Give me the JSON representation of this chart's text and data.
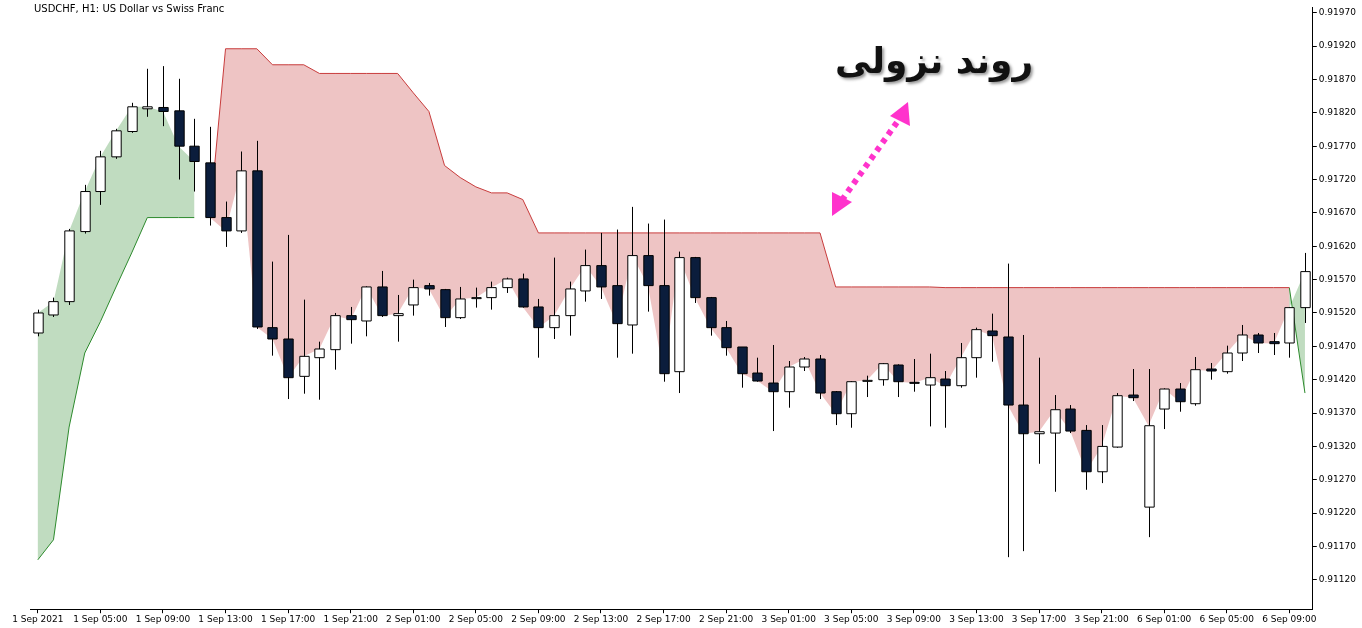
{
  "chart_data": {
    "type": "candlestick",
    "title": "USDCHF, H1: US Dollar vs Swiss Franc",
    "annotations": [
      "روند نزولی"
    ],
    "categories": [
      "1 Sep 2021",
      null,
      null,
      null,
      "1 Sep 05:00",
      null,
      null,
      null,
      "1 Sep 09:00",
      null,
      null,
      null,
      "1 Sep 13:00",
      null,
      null,
      null,
      "1 Sep 17:00",
      null,
      null,
      null,
      "1 Sep 21:00",
      null,
      null,
      null,
      "2 Sep 01:00",
      null,
      null,
      null,
      "2 Sep 05:00",
      null,
      null,
      null,
      "2 Sep 09:00",
      null,
      null,
      null,
      "2 Sep 13:00",
      null,
      null,
      null,
      "2 Sep 17:00",
      null,
      null,
      null,
      "2 Sep 21:00",
      null,
      null,
      null,
      "3 Sep 01:00",
      null,
      null,
      null,
      "3 Sep 05:00",
      null,
      null,
      null,
      "3 Sep 09:00",
      null,
      null,
      null,
      "3 Sep 13:00",
      null,
      null,
      null,
      "3 Sep 17:00",
      null,
      null,
      null,
      "3 Sep 21:00",
      null,
      null,
      null,
      "6 Sep 01:00",
      null,
      null,
      null,
      "6 Sep 05:00",
      null,
      null,
      null,
      "6 Sep 09:00",
      null
    ],
    "ohlc": [
      [
        0.9149,
        0.91525,
        0.91485,
        0.9152
      ],
      [
        0.91517,
        0.91543,
        0.91514,
        0.91537
      ],
      [
        0.91537,
        0.91646,
        0.91532,
        0.91643
      ],
      [
        0.91642,
        0.91712,
        0.91639,
        0.91702
      ],
      [
        0.91702,
        0.91763,
        0.91682,
        0.91754
      ],
      [
        0.91754,
        0.91796,
        0.91751,
        0.91793
      ],
      [
        0.91792,
        0.91835,
        0.9179,
        0.91829
      ],
      [
        0.91826,
        0.91886,
        0.91814,
        0.91829
      ],
      [
        0.91828,
        0.9189,
        0.918,
        0.91822
      ],
      [
        0.91823,
        0.91871,
        0.9172,
        0.9177
      ],
      [
        0.9177,
        0.91811,
        0.91702,
        0.91747
      ],
      [
        0.91745,
        0.91799,
        0.91651,
        0.91663
      ],
      [
        0.91663,
        0.91687,
        0.91619,
        0.91643
      ],
      [
        0.91643,
        0.91762,
        0.9164,
        0.91733
      ],
      [
        0.91733,
        0.91778,
        0.91496,
        0.91499
      ],
      [
        0.91498,
        0.91597,
        0.91456,
        0.91481
      ],
      [
        0.91481,
        0.91637,
        0.91391,
        0.91423
      ],
      [
        0.91425,
        0.9154,
        0.91399,
        0.91455
      ],
      [
        0.91453,
        0.91477,
        0.9139,
        0.91466
      ],
      [
        0.91465,
        0.9152,
        0.91435,
        0.91516
      ],
      [
        0.91516,
        0.91529,
        0.91474,
        0.9151
      ],
      [
        0.91508,
        0.9156,
        0.91485,
        0.91559
      ],
      [
        0.91559,
        0.91583,
        0.91514,
        0.91516
      ],
      [
        0.91516,
        0.91547,
        0.91477,
        0.91519
      ],
      [
        0.91532,
        0.9157,
        0.91516,
        0.91558
      ],
      [
        0.91561,
        0.91565,
        0.91546,
        0.91556
      ],
      [
        0.91555,
        0.91556,
        0.91499,
        0.91513
      ],
      [
        0.91513,
        0.91559,
        0.91511,
        0.91541
      ],
      [
        0.91542,
        0.91558,
        0.91528,
        0.91543
      ],
      [
        0.91543,
        0.91567,
        0.91525,
        0.91558
      ],
      [
        0.91558,
        0.91573,
        0.9155,
        0.91571
      ],
      [
        0.91571,
        0.91579,
        0.91528,
        0.91529
      ],
      [
        0.91529,
        0.91541,
        0.91453,
        0.91498
      ],
      [
        0.91498,
        0.91603,
        0.91481,
        0.91516
      ],
      [
        0.91516,
        0.91567,
        0.91486,
        0.91556
      ],
      [
        0.91553,
        0.91615,
        0.91537,
        0.91591
      ],
      [
        0.91591,
        0.9164,
        0.91541,
        0.91559
      ],
      [
        0.91561,
        0.91645,
        0.91453,
        0.91504
      ],
      [
        0.91502,
        0.91679,
        0.91459,
        0.91606
      ],
      [
        0.91606,
        0.91654,
        0.91522,
        0.91561
      ],
      [
        0.91561,
        0.9166,
        0.91417,
        0.91429
      ],
      [
        0.91432,
        0.91612,
        0.914,
        0.91603
      ],
      [
        0.91603,
        0.91604,
        0.91535,
        0.91543
      ],
      [
        0.91543,
        0.91544,
        0.91486,
        0.91498
      ],
      [
        0.91498,
        0.91508,
        0.91456,
        0.91468
      ],
      [
        0.91469,
        0.91469,
        0.91408,
        0.91429
      ],
      [
        0.9143,
        0.91453,
        0.91417,
        0.91418
      ],
      [
        0.91415,
        0.91472,
        0.91343,
        0.91402
      ],
      [
        0.91402,
        0.91448,
        0.91378,
        0.91439
      ],
      [
        0.91439,
        0.91454,
        0.91433,
        0.91451
      ],
      [
        0.91451,
        0.91457,
        0.91391,
        0.914
      ],
      [
        0.91402,
        0.91403,
        0.91352,
        0.91369
      ],
      [
        0.91369,
        0.91418,
        0.91348,
        0.91417
      ],
      [
        0.91418,
        0.91426,
        0.91394,
        0.91419
      ],
      [
        0.9142,
        0.91445,
        0.91411,
        0.91444
      ],
      [
        0.91442,
        0.91443,
        0.91394,
        0.91417
      ],
      [
        0.91416,
        0.91451,
        0.91402,
        0.91415
      ],
      [
        0.91412,
        0.91459,
        0.9135,
        0.91423
      ],
      [
        0.91421,
        0.91433,
        0.91348,
        0.91411
      ],
      [
        0.91411,
        0.91475,
        0.91408,
        0.91453
      ],
      [
        0.91453,
        0.91498,
        0.91423,
        0.91495
      ],
      [
        0.91493,
        0.91519,
        0.91447,
        0.91486
      ],
      [
        0.91484,
        0.91594,
        0.91154,
        0.91382
      ],
      [
        0.91382,
        0.91487,
        0.91163,
        0.91339
      ],
      [
        0.91339,
        0.91453,
        0.91294,
        0.91342
      ],
      [
        0.9134,
        0.91397,
        0.91252,
        0.91375
      ],
      [
        0.91376,
        0.91382,
        0.9134,
        0.91343
      ],
      [
        0.91344,
        0.91352,
        0.91255,
        0.91282
      ],
      [
        0.91282,
        0.91352,
        0.91265,
        0.9132
      ],
      [
        0.91319,
        0.914,
        0.91318,
        0.91396
      ],
      [
        0.91397,
        0.91436,
        0.91388,
        0.91393
      ],
      [
        0.91229,
        0.91436,
        0.91184,
        0.91351
      ],
      [
        0.91376,
        0.91407,
        0.91346,
        0.91406
      ],
      [
        0.91406,
        0.91415,
        0.91372,
        0.91387
      ],
      [
        0.91384,
        0.91454,
        0.91381,
        0.91435
      ],
      [
        0.91436,
        0.91445,
        0.9142,
        0.91433
      ],
      [
        0.91432,
        0.91471,
        0.91429,
        0.9146
      ],
      [
        0.9146,
        0.91502,
        0.91448,
        0.91487
      ],
      [
        0.91487,
        0.9149,
        0.9146,
        0.91475
      ],
      [
        0.91477,
        0.9149,
        0.91457,
        0.91474
      ],
      [
        0.91475,
        0.91529,
        0.91453,
        0.91528
      ],
      [
        0.91528,
        0.9161,
        0.91505,
        0.91582
      ]
    ],
    "colors": [
      "#ffffff",
      "#ffffff",
      "#ffffff",
      "#ffffff",
      "#ffffff",
      "#ffffff",
      "#ffffff",
      "#ffffff",
      "#0b1d3c",
      "#0b1d3c",
      "#0b1d3c",
      "#0b1d3c",
      "#0b1d3c",
      "#ffffff",
      "#0b1d3c",
      "#0b1d3c",
      "#0b1d3c",
      "#ffffff",
      "#ffffff",
      "#ffffff",
      "#0b1d3c",
      "#ffffff",
      "#0b1d3c",
      "#ffffff",
      "#ffffff",
      "#0b1d3c",
      "#0b1d3c",
      "#ffffff",
      "#ffffff",
      "#ffffff",
      "#ffffff",
      "#0b1d3c",
      "#0b1d3c",
      "#ffffff",
      "#ffffff",
      "#ffffff",
      "#0b1d3c",
      "#0b1d3c",
      "#ffffff",
      "#0b1d3c",
      "#0b1d3c",
      "#ffffff",
      "#0b1d3c",
      "#0b1d3c",
      "#0b1d3c",
      "#0b1d3c",
      "#0b1d3c",
      "#0b1d3c",
      "#ffffff",
      "#ffffff",
      "#0b1d3c",
      "#0b1d3c",
      "#ffffff",
      "#ffffff",
      "#ffffff",
      "#0b1d3c",
      "#0b1d3c",
      "#ffffff",
      "#0b1d3c",
      "#ffffff",
      "#ffffff",
      "#0b1d3c",
      "#0b1d3c",
      "#0b1d3c",
      "#ffffff",
      "#ffffff",
      "#0b1d3c",
      "#0b1d3c",
      "#ffffff",
      "#ffffff",
      "#0b1d3c",
      "#ffffff",
      "#ffffff",
      "#0b1d3c",
      "#ffffff",
      "#0b1d3c",
      "#ffffff",
      "#ffffff",
      "#0b1d3c",
      "#0b1d3c",
      "#ffffff",
      "#ffffff"
    ],
    "series": [
      {
        "type": "area",
        "color": "#c83c3c",
        "values": [
          null,
          null,
          null,
          null,
          null,
          null,
          null,
          null,
          null,
          null,
          null,
          0.91666,
          0.91916,
          0.91916,
          0.91916,
          0.91892,
          0.91892,
          0.91892,
          0.91879,
          0.91879,
          0.91879,
          0.91879,
          0.91879,
          0.91879,
          0.9185,
          0.91822,
          0.91741,
          0.91723,
          0.91709,
          0.917,
          0.917,
          0.9169,
          0.9164,
          0.9164,
          0.9164,
          0.9164,
          0.9164,
          0.9164,
          0.9164,
          0.9164,
          0.9164,
          0.9164,
          0.9164,
          0.9164,
          0.9164,
          0.9164,
          0.9164,
          0.9164,
          0.9164,
          0.9164,
          0.9164,
          0.91559,
          0.91559,
          0.91559,
          0.91559,
          0.91559,
          0.91559,
          0.91559,
          0.91558,
          0.91558,
          0.91558,
          0.91558,
          0.91558,
          0.91558,
          0.91558,
          0.91558,
          0.91558,
          0.91558,
          0.91558,
          0.91558,
          0.91558,
          0.91558,
          0.91558,
          0.91558,
          0.91558,
          0.91558,
          0.91558,
          0.91558,
          0.91558,
          0.91558,
          0.91558,
          null
        ]
      },
      {
        "type": "line",
        "color": "#2d8a2d",
        "values": [
          0.9115,
          0.9118,
          0.91349,
          0.9146,
          0.91507,
          0.91559,
          0.9161,
          0.91663,
          0.91663,
          0.91663,
          0.91663,
          null,
          null,
          null,
          null,
          null,
          null,
          null,
          null,
          null,
          null,
          null,
          null,
          null,
          null,
          null,
          null,
          null,
          null,
          null,
          null,
          null,
          null,
          null,
          null,
          null,
          null,
          null,
          null,
          null,
          null,
          null,
          null,
          null,
          null,
          null,
          null,
          null,
          null,
          null,
          null,
          null,
          null,
          null,
          null,
          null,
          null,
          null,
          null,
          null,
          null,
          null,
          null,
          null,
          null,
          null,
          null,
          null,
          null,
          null,
          null,
          null,
          null,
          null,
          null,
          null,
          null,
          null,
          null,
          null,
          0.91558,
          0.914
        ],
        "lower": [
          0.9115,
          0.9118,
          0.91349,
          0.9146,
          0.91507,
          0.91559,
          0.9161,
          0.91663,
          0.91663,
          0.91663,
          0.91663,
          null,
          null,
          null,
          null,
          null,
          null,
          null,
          null,
          null,
          null,
          null,
          null,
          null,
          null,
          null,
          null,
          null,
          null,
          null,
          null,
          null,
          null,
          null,
          null,
          null,
          null,
          null,
          null,
          null,
          null,
          null,
          null,
          null,
          null,
          null,
          null,
          null,
          null,
          null,
          null,
          null,
          null,
          null,
          null,
          null,
          null,
          null,
          null,
          null,
          null,
          null,
          null,
          null,
          null,
          null,
          null,
          null,
          null,
          null,
          null,
          null,
          null,
          null,
          null,
          null,
          null,
          null,
          null,
          null,
          0.91558,
          0.914
        ],
        "upper": [
          0.9152,
          0.91537,
          0.91643,
          0.91702,
          0.91754,
          0.91793,
          0.91829,
          0.91829,
          0.91822,
          0.9177,
          0.91747,
          null,
          null,
          null,
          null,
          null,
          null,
          null,
          null,
          null,
          null,
          null,
          null,
          null,
          null,
          null,
          null,
          null,
          null,
          null,
          null,
          null,
          null,
          null,
          null,
          null,
          null,
          null,
          null,
          null,
          null,
          null,
          null,
          null,
          null,
          null,
          null,
          null,
          null,
          null,
          null,
          null,
          null,
          null,
          null,
          null,
          null,
          null,
          null,
          null,
          null,
          null,
          null,
          null,
          null,
          null,
          null,
          null,
          null,
          null,
          null,
          null,
          null,
          null,
          null,
          null,
          null,
          null,
          null,
          null,
          0.91528,
          0.91582
        ]
      }
    ],
    "ylim": [
      0.91076,
      0.91978
    ],
    "yticks": [
      {
        "value": 0.9112,
        "label": "0.91120"
      },
      {
        "value": 0.9117,
        "label": "0.91170"
      },
      {
        "value": 0.9122,
        "label": "0.91220"
      },
      {
        "value": 0.9127,
        "label": "0.91270"
      },
      {
        "value": 0.9132,
        "label": "0.91320"
      },
      {
        "value": 0.9137,
        "label": "0.91370"
      },
      {
        "value": 0.9142,
        "label": "0.91420"
      },
      {
        "value": 0.9147,
        "label": "0.91470"
      },
      {
        "value": 0.9152,
        "label": "0.91520"
      },
      {
        "value": 0.9157,
        "label": "0.91570"
      },
      {
        "value": 0.9162,
        "label": "0.91620"
      },
      {
        "value": 0.9167,
        "label": "0.91670"
      },
      {
        "value": 0.9172,
        "label": "0.91720"
      },
      {
        "value": 0.9177,
        "label": "0.91770"
      },
      {
        "value": 0.9182,
        "label": "0.91820"
      },
      {
        "value": 0.9187,
        "label": "0.91870"
      },
      {
        "value": 0.9192,
        "label": "0.91920"
      },
      {
        "value": 0.9197,
        "label": "0.91970"
      }
    ],
    "grid": false,
    "legend": false
  }
}
